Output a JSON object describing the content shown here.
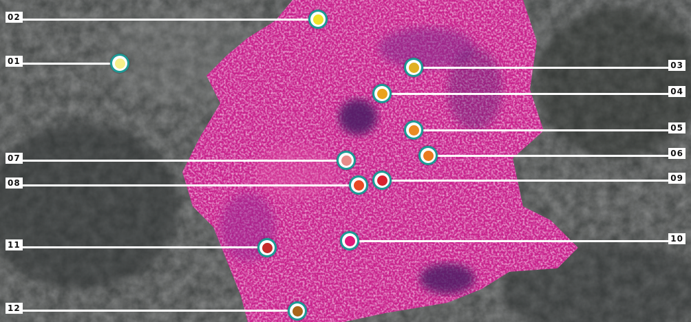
{
  "map": {
    "points": [
      {
        "label": "01",
        "color": "#f6f08a"
      },
      {
        "label": "02",
        "color": "#efe32a"
      },
      {
        "label": "03",
        "color": "#e0b022"
      },
      {
        "label": "04",
        "color": "#eaa21d"
      },
      {
        "label": "05",
        "color": "#ea8a22"
      },
      {
        "label": "06",
        "color": "#ea7b1f"
      },
      {
        "label": "07",
        "color": "#e88a8a"
      },
      {
        "label": "08",
        "color": "#e94a23"
      },
      {
        "label": "09",
        "color": "#d9202e"
      },
      {
        "label": "10",
        "color": "#e0177a"
      },
      {
        "label": "11",
        "color": "#c62a2a"
      },
      {
        "label": "12",
        "color": "#a9651a"
      }
    ],
    "colors": {
      "marker_ring": "#1d9a96",
      "urban_area": "#c8228c",
      "terrain": "#3a3d3c"
    }
  }
}
